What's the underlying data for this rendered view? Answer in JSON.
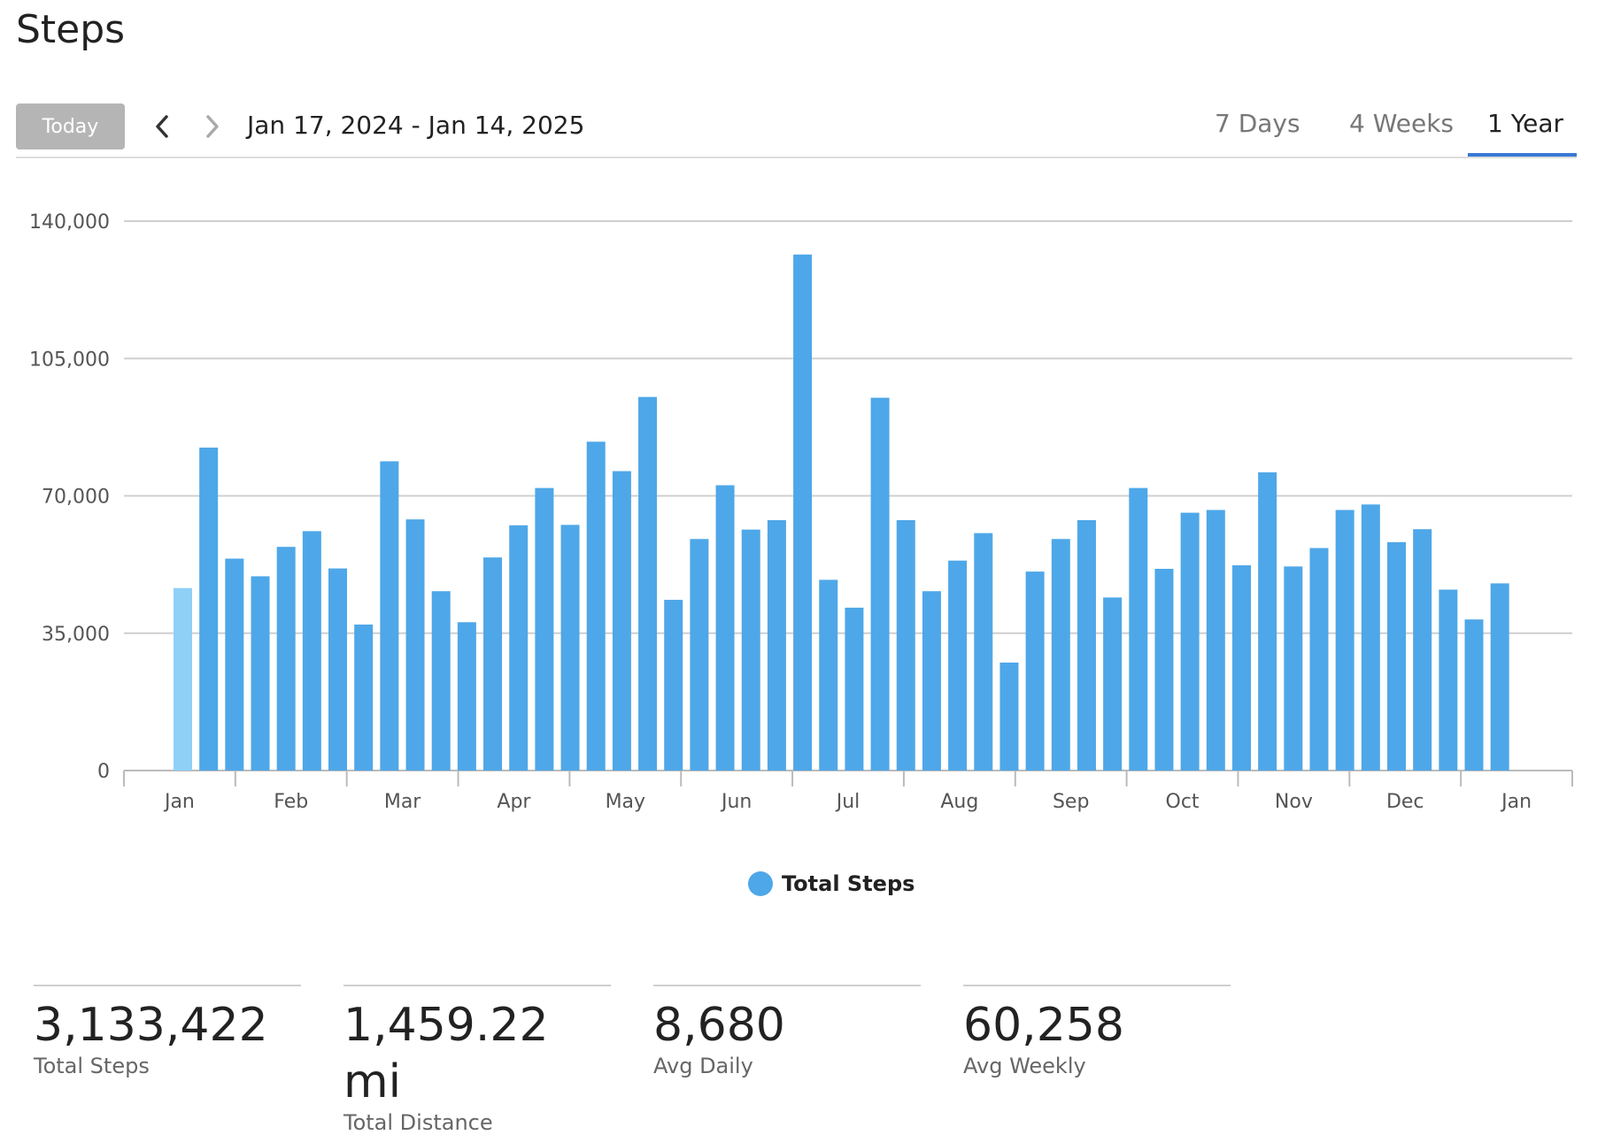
{
  "page": {
    "title": "Steps"
  },
  "toolbar": {
    "today_label": "Today",
    "date_range": "Jan 17, 2024 - Jan 14, 2025",
    "tabs": [
      {
        "label": "7 Days",
        "active": false
      },
      {
        "label": "4 Weeks",
        "active": false
      },
      {
        "label": "1 Year",
        "active": true
      }
    ],
    "prev_icon": "chevron-left-icon",
    "next_icon": "chevron-right-icon"
  },
  "colors": {
    "bar": "#4ea7e8",
    "bar_highlight": "#8fd0f7",
    "tab_active": "#3a78d6"
  },
  "chart_data": {
    "type": "bar",
    "ylim": [
      0,
      140000
    ],
    "yticks": [
      0,
      35000,
      70000,
      105000,
      140000
    ],
    "ytick_labels": [
      "0",
      "35,000",
      "70,000",
      "105,000",
      "140,000"
    ],
    "month_labels": [
      "Jan",
      "Feb",
      "Mar",
      "Apr",
      "May",
      "Jun",
      "Jul",
      "Aug",
      "Sep",
      "Oct",
      "Nov",
      "Dec",
      "Jan"
    ],
    "grid": true,
    "legend_position": "bottom-center",
    "series": [
      {
        "name": "Total Steps",
        "values": [
          46500,
          82300,
          54000,
          49500,
          57000,
          61000,
          51500,
          37200,
          78800,
          64000,
          45700,
          37800,
          54300,
          62500,
          72000,
          62600,
          83800,
          76300,
          95200,
          43500,
          59000,
          72700,
          61400,
          63800,
          131500,
          48600,
          41500,
          95000,
          63800,
          45700,
          53500,
          60500,
          27500,
          50700,
          59000,
          63800,
          44100,
          72000,
          51400,
          65700,
          66400,
          52300,
          76000,
          52000,
          56700,
          66400,
          67800,
          58200,
          61500,
          46100,
          38500,
          47700
        ]
      }
    ],
    "highlight_index": 0
  },
  "legend": {
    "label": "Total Steps"
  },
  "stats": [
    {
      "value": "3,133,422",
      "label": "Total Steps"
    },
    {
      "value": "1,459.22 mi",
      "label": "Total Distance"
    },
    {
      "value": "8,680",
      "label": "Avg Daily"
    },
    {
      "value": "60,258",
      "label": "Avg Weekly"
    }
  ]
}
